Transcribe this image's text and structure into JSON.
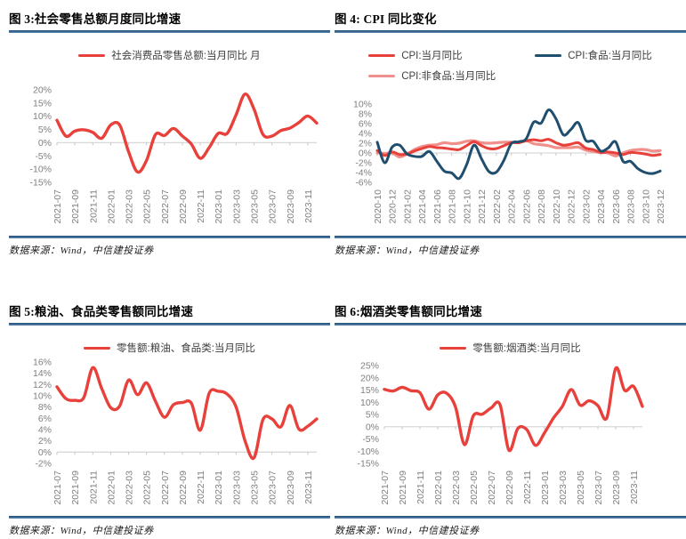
{
  "chart_data": [
    {
      "type": "line",
      "title": "图 3:社会零售总额月度同比增速",
      "source": "数据来源：Wind，中信建投证券",
      "ylabel": "",
      "xlabel": "",
      "ylim": [
        -15,
        20
      ],
      "yticks": [
        20,
        15,
        10,
        5,
        0,
        -5,
        -10,
        -15
      ],
      "grid": false,
      "legend_position": "top",
      "x": [
        "2021-07",
        "2021-08",
        "2021-09",
        "2021-10",
        "2021-11",
        "2021-12",
        "2022-01",
        "2022-02",
        "2022-03",
        "2022-04",
        "2022-05",
        "2022-06",
        "2022-07",
        "2022-08",
        "2022-09",
        "2022-10",
        "2022-11",
        "2022-12",
        "2023-01",
        "2023-02",
        "2023-03",
        "2023-04",
        "2023-05",
        "2023-06",
        "2023-07",
        "2023-08",
        "2023-09",
        "2023-10",
        "2023-11",
        "2023-12"
      ],
      "series": [
        {
          "name": "社会消费品零售总额:当月同比 月",
          "color": "#E8403A",
          "width": 3.4,
          "z": 1,
          "values": [
            8.5,
            2.5,
            4.4,
            4.9,
            3.9,
            1.7,
            6.7,
            6.7,
            -3.5,
            -11.1,
            -6.7,
            3.1,
            2.7,
            5.4,
            2.5,
            -0.5,
            -5.9,
            -1.8,
            3.5,
            3.5,
            10.6,
            18.4,
            12.7,
            3.1,
            2.5,
            4.6,
            5.5,
            7.6,
            10.1,
            7.4
          ]
        }
      ]
    },
    {
      "type": "line",
      "title": "图 4: CPI 同比变化",
      "source": "数据来源：Wind，中信建投证券",
      "ylabel": "",
      "xlabel": "",
      "ylim": [
        -6,
        10
      ],
      "yticks": [
        10,
        8,
        6,
        4,
        2,
        0,
        -2,
        -4,
        -6
      ],
      "grid": false,
      "legend_position": "top",
      "x": [
        "2020-10",
        "2020-11",
        "2020-12",
        "2021-01",
        "2021-02",
        "2021-03",
        "2021-04",
        "2021-05",
        "2021-06",
        "2021-07",
        "2021-08",
        "2021-09",
        "2021-10",
        "2021-11",
        "2021-12",
        "2022-01",
        "2022-02",
        "2022-03",
        "2022-04",
        "2022-05",
        "2022-06",
        "2022-07",
        "2022-08",
        "2022-09",
        "2022-10",
        "2022-11",
        "2022-12",
        "2023-01",
        "2023-02",
        "2023-03",
        "2023-04",
        "2023-05",
        "2023-06",
        "2023-07",
        "2023-08",
        "2023-09",
        "2023-10",
        "2023-11",
        "2023-12"
      ],
      "series": [
        {
          "name": "CPI:当月同比",
          "color": "#E8403A",
          "width": 3,
          "z": 2,
          "values": [
            0.5,
            -0.5,
            0.2,
            -0.3,
            -0.2,
            0.4,
            0.9,
            1.3,
            1.1,
            1.0,
            0.8,
            0.7,
            1.5,
            2.3,
            1.5,
            0.9,
            0.9,
            1.5,
            2.1,
            2.1,
            2.5,
            2.7,
            2.5,
            2.8,
            2.1,
            1.6,
            1.8,
            2.1,
            1.0,
            0.7,
            0.1,
            0.2,
            0.0,
            -0.3,
            0.1,
            0.0,
            -0.2,
            -0.5,
            -0.3
          ]
        },
        {
          "name": "CPI:食品:当月同比",
          "color": "#1F4E6E",
          "width": 3,
          "z": 3,
          "values": [
            2.2,
            -2.0,
            1.2,
            1.6,
            -0.2,
            -0.7,
            -0.7,
            0.3,
            -1.7,
            -3.7,
            -4.1,
            -5.2,
            -2.4,
            1.6,
            -1.2,
            -3.8,
            -3.9,
            -1.5,
            1.9,
            2.3,
            2.9,
            6.3,
            6.1,
            8.8,
            7.0,
            3.7,
            4.8,
            6.2,
            2.6,
            2.4,
            0.4,
            1.0,
            2.3,
            -1.7,
            -1.7,
            -3.2,
            -4.0,
            -4.2,
            -3.7
          ]
        },
        {
          "name": "CPI:非食品:当月同比",
          "color": "#F0908C",
          "width": 3.2,
          "z": 0,
          "values": [
            0.0,
            -0.1,
            0.0,
            -0.8,
            -0.2,
            0.7,
            1.3,
            1.6,
            1.7,
            2.1,
            1.9,
            2.0,
            2.4,
            2.5,
            2.1,
            2.0,
            2.1,
            2.2,
            2.2,
            2.1,
            2.5,
            1.9,
            1.7,
            1.5,
            1.1,
            1.1,
            1.1,
            1.2,
            0.6,
            0.3,
            0.1,
            0.0,
            -0.6,
            0.0,
            0.5,
            0.7,
            0.7,
            0.4,
            0.5
          ]
        }
      ]
    },
    {
      "type": "line",
      "title": "图 5:粮油、食品类零售额同比增速",
      "source": "数据来源：Wind，中信建投证券",
      "ylabel": "",
      "xlabel": "",
      "ylim": [
        -2,
        16
      ],
      "yticks": [
        16,
        14,
        12,
        10,
        8,
        6,
        4,
        2,
        0,
        -2
      ],
      "grid": false,
      "legend_position": "top",
      "x": [
        "2021-07",
        "2021-08",
        "2021-09",
        "2021-10",
        "2021-11",
        "2021-12",
        "2022-01",
        "2022-02",
        "2022-03",
        "2022-04",
        "2022-05",
        "2022-06",
        "2022-07",
        "2022-08",
        "2022-09",
        "2022-10",
        "2022-11",
        "2022-12",
        "2023-01",
        "2023-02",
        "2023-03",
        "2023-04",
        "2023-05",
        "2023-06",
        "2023-07",
        "2023-08",
        "2023-09",
        "2023-10",
        "2023-11",
        "2023-12"
      ],
      "series": [
        {
          "name": "零售额:粮油、食品类:当月同比",
          "color": "#E8403A",
          "width": 3.4,
          "z": 1,
          "values": [
            11.6,
            9.5,
            9.2,
            9.7,
            15.0,
            11.3,
            7.9,
            8.2,
            12.8,
            10.2,
            12.3,
            9.0,
            6.2,
            8.4,
            8.8,
            8.7,
            3.9,
            10.5,
            10.8,
            10.3,
            8.0,
            2.0,
            -1.0,
            5.8,
            5.9,
            4.5,
            8.3,
            4.1,
            4.6,
            5.9
          ]
        }
      ]
    },
    {
      "type": "line",
      "title": "图 6:烟酒类零售额同比增速",
      "source": "数据来源：Wind，中信建投证券",
      "ylabel": "",
      "xlabel": "",
      "ylim": [
        -15,
        25
      ],
      "yticks": [
        25,
        20,
        15,
        10,
        5,
        0,
        -5,
        -10,
        -15
      ],
      "grid": false,
      "legend_position": "top",
      "x": [
        "2021-07",
        "2021-08",
        "2021-09",
        "2021-10",
        "2021-11",
        "2021-12",
        "2022-01",
        "2022-02",
        "2022-03",
        "2022-04",
        "2022-05",
        "2022-06",
        "2022-07",
        "2022-08",
        "2022-09",
        "2022-10",
        "2022-11",
        "2022-12",
        "2023-01",
        "2023-02",
        "2023-03",
        "2023-04",
        "2023-05",
        "2023-06",
        "2023-07",
        "2023-08",
        "2023-09",
        "2023-10",
        "2023-11",
        "2023-12"
      ],
      "series": [
        {
          "name": "零售额:烟酒类:当月同比",
          "color": "#E8403A",
          "width": 3.4,
          "z": 1,
          "values": [
            15.3,
            14.6,
            16.1,
            14.7,
            13.9,
            7.2,
            13.0,
            13.7,
            8.0,
            -7.3,
            4.5,
            5.1,
            7.7,
            9.0,
            -9.6,
            -0.7,
            -1.2,
            -7.6,
            -2.5,
            3.5,
            8.3,
            15.2,
            8.8,
            10.6,
            8.6,
            3.6,
            23.9,
            14.9,
            16.5,
            8.3
          ]
        }
      ]
    }
  ],
  "colors": {
    "accent_red": "#E8403A",
    "accent_navy": "#1F4E6E",
    "accent_pink": "#F0908C",
    "divider_blue": "#1E4A73",
    "tick_gray": "#7F7F7F"
  }
}
